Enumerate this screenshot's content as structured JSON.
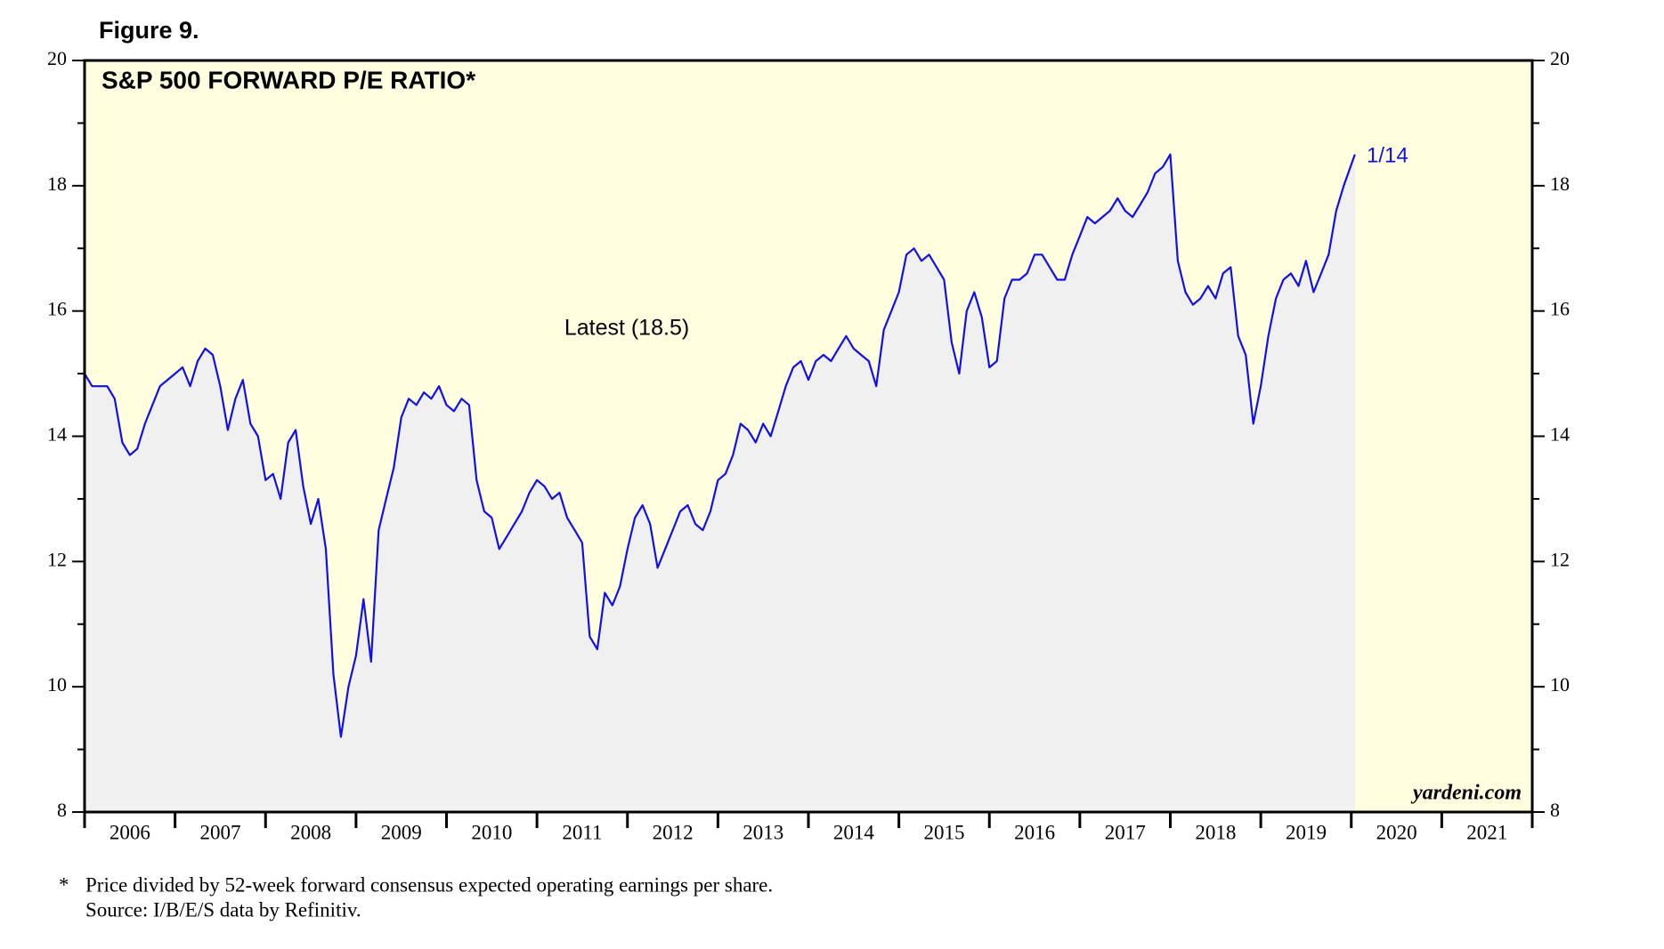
{
  "chart_data": {
    "type": "line",
    "figure_label": "Figure 9.",
    "title": "S&P 500 FORWARD P/E RATIO*",
    "annotation_latest": "Latest (18.5)",
    "annotation_date": "1/14",
    "source_brand": "yardeni.com",
    "footnote_marker": "*",
    "footnote": "Price divided by 52-week forward consensus expected operating earnings per share.",
    "source": "Source: I/B/E/S data by Refinitiv.",
    "xlim": [
      2006,
      2022
    ],
    "xticks": [
      2006,
      2007,
      2008,
      2009,
      2010,
      2011,
      2012,
      2013,
      2014,
      2015,
      2016,
      2017,
      2018,
      2019,
      2020,
      2021,
      2022
    ],
    "ylim": [
      8,
      20
    ],
    "yticks": [
      8,
      10,
      12,
      14,
      16,
      18,
      20
    ],
    "color": "#1010ee",
    "x": [
      2006,
      2006.083,
      2006.167,
      2006.25,
      2006.333,
      2006.417,
      2006.5,
      2006.583,
      2006.667,
      2006.75,
      2006.833,
      2006.917,
      2007,
      2007.083,
      2007.167,
      2007.25,
      2007.333,
      2007.417,
      2007.5,
      2007.583,
      2007.667,
      2007.75,
      2007.833,
      2007.917,
      2008,
      2008.083,
      2008.167,
      2008.25,
      2008.333,
      2008.417,
      2008.5,
      2008.583,
      2008.667,
      2008.75,
      2008.833,
      2008.917,
      2009,
      2009.083,
      2009.167,
      2009.25,
      2009.333,
      2009.417,
      2009.5,
      2009.583,
      2009.667,
      2009.75,
      2009.833,
      2009.917,
      2010,
      2010.083,
      2010.167,
      2010.25,
      2010.333,
      2010.417,
      2010.5,
      2010.583,
      2010.667,
      2010.75,
      2010.833,
      2010.917,
      2011,
      2011.083,
      2011.167,
      2011.25,
      2011.333,
      2011.417,
      2011.5,
      2011.583,
      2011.667,
      2011.75,
      2011.833,
      2011.917,
      2012,
      2012.083,
      2012.167,
      2012.25,
      2012.333,
      2012.417,
      2012.5,
      2012.583,
      2012.667,
      2012.75,
      2012.833,
      2012.917,
      2013,
      2013.083,
      2013.167,
      2013.25,
      2013.333,
      2013.417,
      2013.5,
      2013.583,
      2013.667,
      2013.75,
      2013.833,
      2013.917,
      2014,
      2014.083,
      2014.167,
      2014.25,
      2014.333,
      2014.417,
      2014.5,
      2014.583,
      2014.667,
      2014.75,
      2014.833,
      2014.917,
      2015,
      2015.083,
      2015.167,
      2015.25,
      2015.333,
      2015.417,
      2015.5,
      2015.583,
      2015.667,
      2015.75,
      2015.833,
      2015.917,
      2016,
      2016.083,
      2016.167,
      2016.25,
      2016.333,
      2016.417,
      2016.5,
      2016.583,
      2016.667,
      2016.75,
      2016.833,
      2016.917,
      2017,
      2017.083,
      2017.167,
      2017.25,
      2017.333,
      2017.417,
      2017.5,
      2017.583,
      2017.667,
      2017.75,
      2017.833,
      2017.917,
      2018,
      2018.083,
      2018.167,
      2018.25,
      2018.333,
      2018.417,
      2018.5,
      2018.583,
      2018.667,
      2018.75,
      2018.833,
      2018.917,
      2019,
      2019.083,
      2019.167,
      2019.25,
      2019.333,
      2019.417,
      2019.5,
      2019.583,
      2019.667,
      2019.75,
      2019.833,
      2019.917,
      2020.04
    ],
    "values": [
      15.0,
      14.8,
      14.8,
      14.8,
      14.6,
      13.9,
      13.7,
      13.8,
      14.2,
      14.5,
      14.8,
      14.9,
      15.0,
      15.1,
      14.8,
      15.2,
      15.4,
      15.3,
      14.8,
      14.1,
      14.6,
      14.9,
      14.2,
      14.0,
      13.3,
      13.4,
      13.0,
      13.9,
      14.1,
      13.2,
      12.6,
      13.0,
      12.2,
      10.2,
      9.2,
      10.0,
      10.5,
      11.4,
      10.4,
      12.5,
      13.0,
      13.5,
      14.3,
      14.6,
      14.5,
      14.7,
      14.6,
      14.8,
      14.5,
      14.4,
      14.6,
      14.5,
      13.3,
      12.8,
      12.7,
      12.2,
      12.4,
      12.6,
      12.8,
      13.1,
      13.3,
      13.2,
      13.0,
      13.1,
      12.7,
      12.5,
      12.3,
      10.8,
      10.6,
      11.5,
      11.3,
      11.6,
      12.2,
      12.7,
      12.9,
      12.6,
      11.9,
      12.2,
      12.5,
      12.8,
      12.9,
      12.6,
      12.5,
      12.8,
      13.3,
      13.4,
      13.7,
      14.2,
      14.1,
      13.9,
      14.2,
      14.0,
      14.4,
      14.8,
      15.1,
      15.2,
      14.9,
      15.2,
      15.3,
      15.2,
      15.4,
      15.6,
      15.4,
      15.3,
      15.2,
      14.8,
      15.7,
      16.0,
      16.3,
      16.9,
      17.0,
      16.8,
      16.9,
      16.7,
      16.5,
      15.5,
      15.0,
      16.0,
      16.3,
      15.9,
      15.1,
      15.2,
      16.2,
      16.5,
      16.5,
      16.6,
      16.9,
      16.9,
      16.7,
      16.5,
      16.5,
      16.9,
      17.2,
      17.5,
      17.4,
      17.5,
      17.6,
      17.8,
      17.6,
      17.5,
      17.7,
      17.9,
      18.2,
      18.3,
      18.5,
      16.8,
      16.3,
      16.1,
      16.2,
      16.4,
      16.2,
      16.6,
      16.7,
      15.6,
      15.3,
      14.2,
      14.8,
      15.6,
      16.2,
      16.5,
      16.6,
      16.4,
      16.8,
      16.3,
      16.6,
      16.9,
      17.6,
      18.0,
      18.5
    ]
  }
}
